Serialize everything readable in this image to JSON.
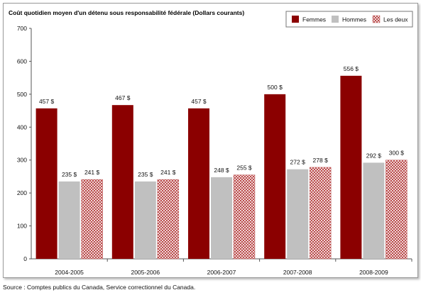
{
  "chart_data": {
    "type": "bar",
    "title": "Coût quotidien moyen d'un détenu sous responsabilité fédérale (Dollars courants)",
    "categories": [
      "2004-2005",
      "2005-2006",
      "2006-2007",
      "2007-2008",
      "2008-2009"
    ],
    "series": [
      {
        "name": "Femmes",
        "values": [
          457,
          467,
          457,
          500,
          556
        ],
        "labels": [
          "457 $",
          "467 $",
          "457 $",
          "500 $",
          "556 $"
        ],
        "color": "#8b0000",
        "pattern": "solid"
      },
      {
        "name": "Hommes",
        "values": [
          235,
          235,
          248,
          272,
          292
        ],
        "labels": [
          "235 $",
          "235 $",
          "248 $",
          "272 $",
          "292 $"
        ],
        "color": "#c0c0c0",
        "pattern": "solid"
      },
      {
        "name": "Les deux",
        "values": [
          241,
          241,
          255,
          278,
          300
        ],
        "labels": [
          "241 $",
          "241 $",
          "255 $",
          "278 $",
          "300 $"
        ],
        "color": "#b03030",
        "pattern": "crosshatch"
      }
    ],
    "ylim": [
      0,
      700
    ],
    "yticks": [
      0,
      100,
      200,
      300,
      400,
      500,
      600,
      700
    ],
    "ytick_labels": [
      "0",
      "100",
      "200",
      "300",
      "400",
      "500",
      "600",
      "700"
    ],
    "grid": false,
    "legend_position": "top-right"
  },
  "source": "Source : Comptes publics du Canada, Service correctionnel du Canada."
}
